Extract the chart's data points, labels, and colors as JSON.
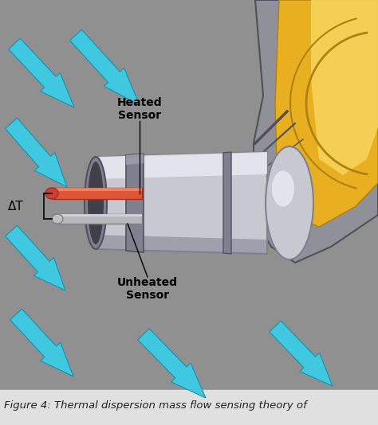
{
  "background_color": "#909090",
  "caption_text": "Figure 4: Thermal dispersion mass flow sensing theory of",
  "caption_color": "#222222",
  "caption_bg": "#e0e0e0",
  "arrow_color": "#40c8e0",
  "arrow_edge_color": "#1890b0",
  "heated_sensor_color": "#e05535",
  "heated_sensor_highlight": "#f09070",
  "heated_sensor_dark": "#a03020",
  "unheated_sensor_color": "#b8b8bc",
  "unheated_sensor_highlight": "#dcdce0",
  "unheated_sensor_dark": "#808088",
  "probe_body_color": "#c8c8d0",
  "probe_body_dark": "#808090",
  "probe_body_light": "#e8e8f0",
  "probe_body_darkest": "#505060",
  "connector_yellow": "#e8b020",
  "connector_yellow_light": "#f8d860",
  "connector_yellow_dark": "#b08010",
  "connector_gray": "#909098",
  "connector_gray_dark": "#505058",
  "label_heated": "Heated\nSensor",
  "label_unheated": "Unheated\nSensor",
  "label_delta": "ΔT",
  "font_size_labels": 10,
  "font_size_caption": 9.5
}
